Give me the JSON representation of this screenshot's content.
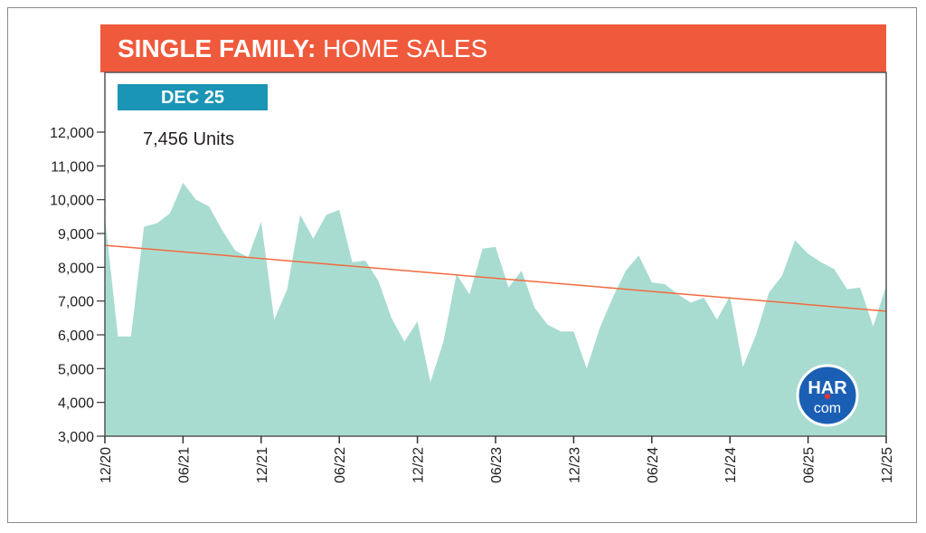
{
  "chart_data": {
    "type": "area",
    "title_parts": [
      "SINGLE FAMILY:",
      "HOME SALES"
    ],
    "badge": "DEC 25",
    "annotation": "7,456 Units",
    "logo": {
      "top": "HAR",
      "bottom": "com"
    },
    "categories": [
      "12/20",
      null,
      null,
      null,
      null,
      null,
      "06/21",
      null,
      null,
      null,
      null,
      null,
      "12/21",
      null,
      null,
      null,
      null,
      null,
      "06/22",
      null,
      null,
      null,
      null,
      null,
      "12/22",
      null,
      null,
      null,
      null,
      null,
      "06/23",
      null,
      null,
      null,
      null,
      null,
      "12/23",
      null,
      null,
      null,
      null,
      null,
      "06/24",
      null,
      null,
      null,
      null,
      null,
      "12/24",
      null,
      null,
      null,
      null,
      null,
      "06/25",
      null,
      null,
      null,
      null,
      null,
      "12/25"
    ],
    "series": [
      {
        "name": "Home Sales",
        "color": "#a8dcd1",
        "values": [
          9500,
          5950,
          5950,
          9200,
          9300,
          9600,
          10500,
          10000,
          9800,
          9100,
          8500,
          8300,
          9350,
          6450,
          7350,
          9550,
          8850,
          9550,
          9700,
          8150,
          8200,
          7600,
          6500,
          5800,
          6400,
          4600,
          5800,
          7800,
          7200,
          8550,
          8600,
          7400,
          7900,
          6800,
          6300,
          6100,
          6100,
          5000,
          6200,
          7100,
          7900,
          8350,
          7550,
          7500,
          7200,
          6950,
          7100,
          6450,
          7150,
          5050,
          6000,
          7250,
          7750,
          8800,
          8400,
          8150,
          7950,
          7350,
          7400,
          6250,
          7456
        ]
      }
    ],
    "trend": {
      "color": "#f26a3d",
      "values": [
        8650,
        6700
      ]
    },
    "ylim": [
      3000,
      12000
    ],
    "yticks": [
      {
        "value": 3000,
        "label": "3,000"
      },
      {
        "value": 4000,
        "label": "4,000"
      },
      {
        "value": 5000,
        "label": "5,000"
      },
      {
        "value": 6000,
        "label": "6,000"
      },
      {
        "value": 7000,
        "label": "7,000"
      },
      {
        "value": 8000,
        "label": "8,000"
      },
      {
        "value": 9000,
        "label": "9,000"
      },
      {
        "value": 10000,
        "label": "10,000"
      },
      {
        "value": 11000,
        "label": "11,000"
      },
      {
        "value": 12000,
        "label": "12,000"
      }
    ]
  }
}
